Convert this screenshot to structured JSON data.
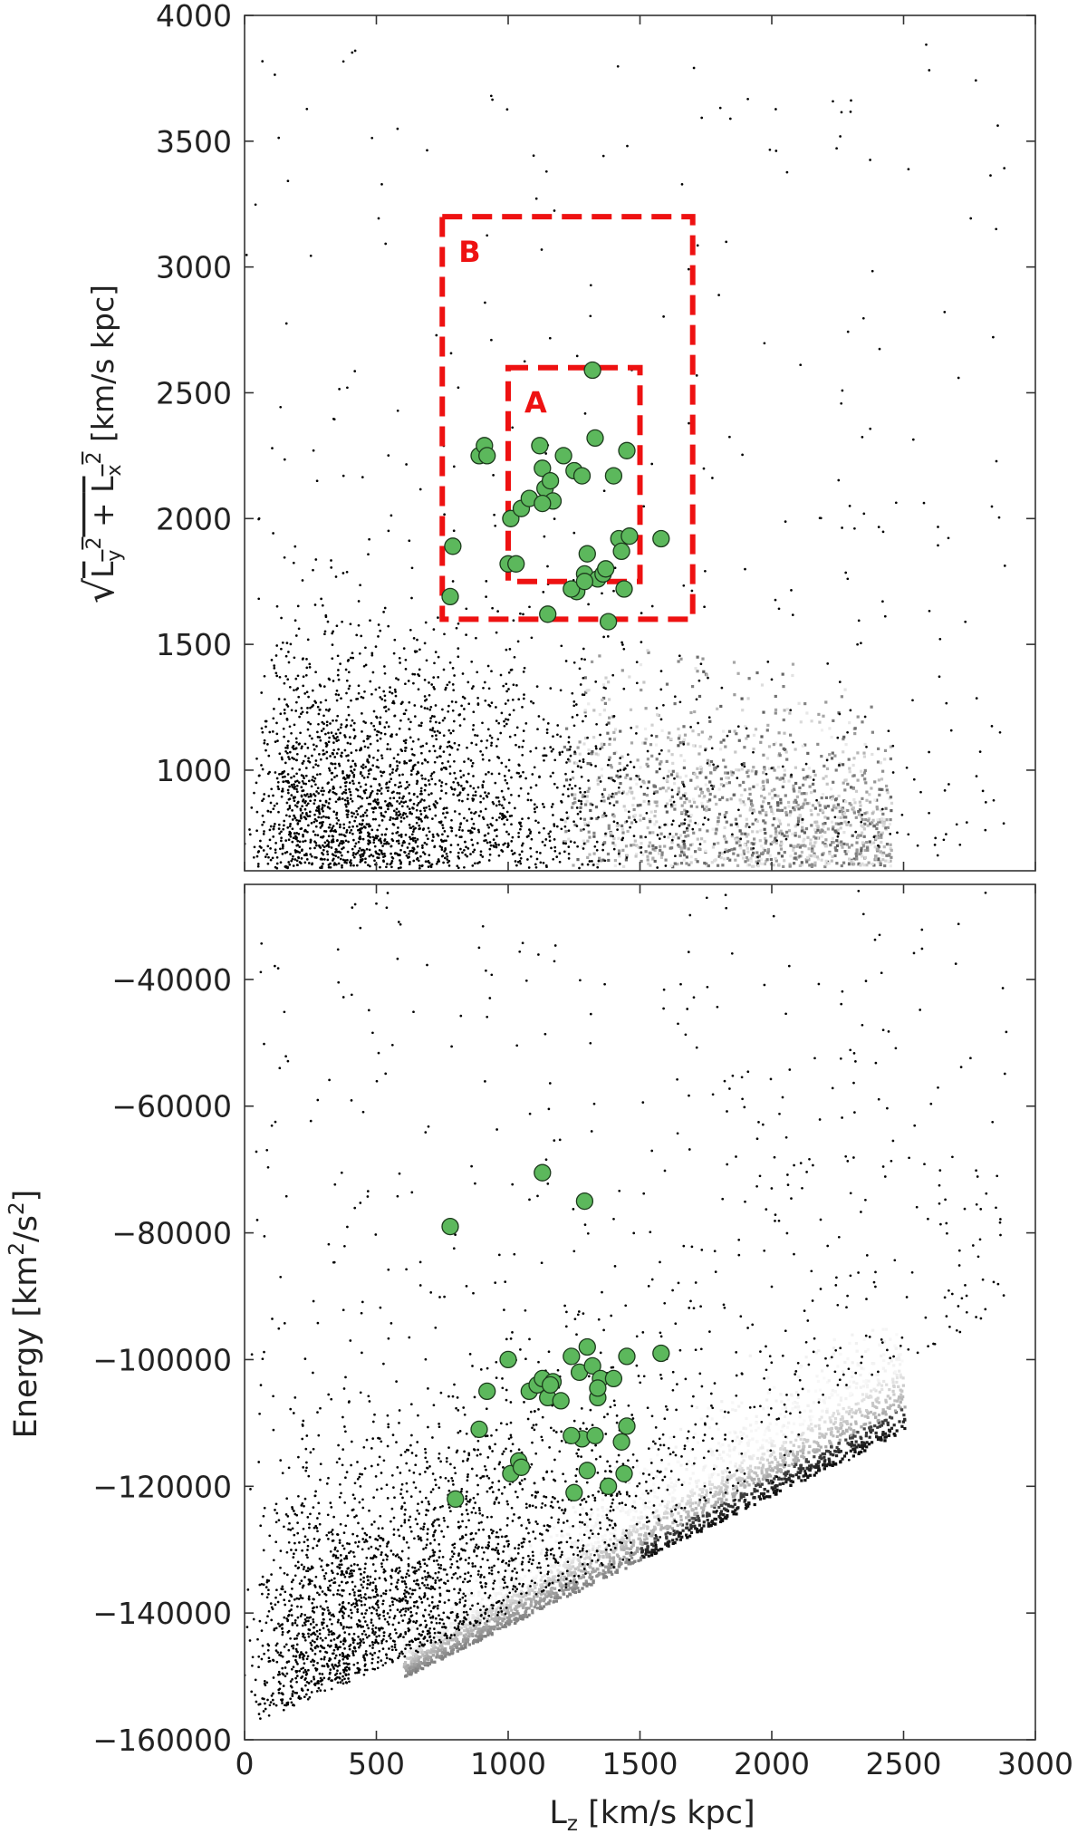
{
  "chart_data": [
    {
      "type": "scatter",
      "panel": "top",
      "xlabel": "",
      "ylabel": "sqrt(Ly^2 + Lx^2) [km/s kpc]",
      "ylabel_parts": {
        "root": "√",
        "a": "L",
        "a_sub": "y",
        "a_sup": "2",
        "plus": " + ",
        "b": "L",
        "b_sub": "x",
        "b_sup": "2",
        "unit": "  [km/s kpc]"
      },
      "xlim": [
        0,
        3000
      ],
      "ylim": [
        600,
        4000
      ],
      "x_ticks": [
        0,
        500,
        1000,
        1500,
        2000,
        2500,
        3000
      ],
      "y_ticks": [
        1000,
        1500,
        2000,
        2500,
        3000,
        3500,
        4000
      ],
      "y_tick_labels": [
        "1000",
        "1500",
        "2000",
        "2500",
        "3000",
        "3500",
        "4000"
      ],
      "grid": false,
      "background": "2D density of field stars (grey) with black scattered individual stars",
      "boxes": [
        {
          "label": "B",
          "x0": 750,
          "x1": 1700,
          "y0": 1600,
          "y1": 3200,
          "color": "#ee1111"
        },
        {
          "label": "A",
          "x0": 1000,
          "x1": 1500,
          "y0": 1750,
          "y1": 2600,
          "color": "#ee1111"
        }
      ],
      "highlight_color": "#5cb85c",
      "x": [
        780,
        790,
        890,
        910,
        920,
        1000,
        1010,
        1030,
        1050,
        1080,
        1120,
        1130,
        1140,
        1150,
        1160,
        1170,
        1210,
        1250,
        1260,
        1280,
        1290,
        1300,
        1320,
        1330,
        1340,
        1360,
        1370,
        1380,
        1400,
        1420,
        1430,
        1440,
        1450,
        1460,
        1580,
        1130,
        1240,
        1290
      ],
      "y": [
        1690,
        1890,
        2250,
        2290,
        2250,
        1820,
        2000,
        1820,
        2040,
        2080,
        2290,
        2200,
        2120,
        1620,
        2150,
        2070,
        2250,
        2190,
        1710,
        2170,
        1780,
        1860,
        2590,
        2320,
        1760,
        1780,
        1800,
        1590,
        2170,
        1920,
        1870,
        1720,
        2270,
        1930,
        1920,
        2060,
        1720,
        1750
      ]
    },
    {
      "type": "scatter",
      "panel": "bottom",
      "xlabel": "L_z [km/s kpc]",
      "xlabel_parts": {
        "a": "L",
        "a_sub": "z",
        "unit": " [km/s kpc]"
      },
      "ylabel": "Energy [km^2/s^2]",
      "ylabel_parts": {
        "a": "Energy [km",
        "sup1": "2",
        "mid": "/s",
        "sup2": "2",
        "end": "]"
      },
      "xlim": [
        0,
        3000
      ],
      "ylim": [
        -160000,
        -25000
      ],
      "x_ticks": [
        0,
        500,
        1000,
        1500,
        2000,
        2500,
        3000
      ],
      "x_tick_labels": [
        "0",
        "500",
        "1000",
        "1500",
        "2000",
        "2500",
        "3000"
      ],
      "y_ticks": [
        -160000,
        -140000,
        -120000,
        -100000,
        -80000,
        -60000,
        -40000
      ],
      "y_tick_labels": [
        "−160000",
        "−140000",
        "−120000",
        "−100000",
        "−80000",
        "−60000",
        "−40000"
      ],
      "grid": false,
      "background": "2D density of field stars (grey, black ridge) with black scattered individual stars",
      "highlight_color": "#5cb85c",
      "x": [
        780,
        800,
        890,
        920,
        1000,
        1010,
        1040,
        1050,
        1080,
        1110,
        1130,
        1130,
        1150,
        1170,
        1200,
        1240,
        1250,
        1270,
        1280,
        1290,
        1300,
        1300,
        1320,
        1330,
        1340,
        1350,
        1380,
        1400,
        1430,
        1440,
        1450,
        1450,
        1580,
        1160,
        1340,
        1240
      ],
      "y": [
        -79000,
        -122000,
        -111000,
        -105000,
        -100000,
        -118000,
        -116000,
        -117000,
        -105000,
        -104000,
        -70500,
        -103000,
        -106000,
        -103500,
        -106500,
        -99500,
        -121000,
        -102000,
        -112500,
        -75000,
        -98000,
        -117500,
        -101000,
        -112000,
        -106000,
        -103000,
        -120000,
        -103000,
        -113000,
        -118000,
        -110500,
        -99500,
        -99000,
        -104000,
        -104500,
        -112000
      ]
    }
  ],
  "colors": {
    "axis": "#333333",
    "box": "#ee1111",
    "marker": "#5cb85c",
    "marker_edge": "#1c3a1c",
    "field": "#000000"
  }
}
